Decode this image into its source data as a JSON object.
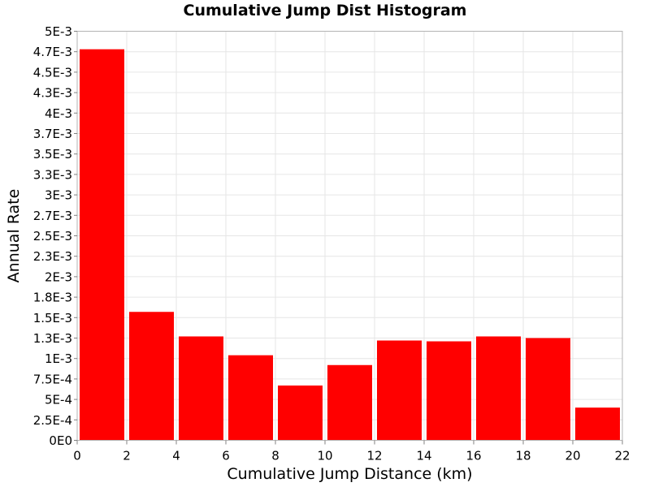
{
  "chart_data": {
    "type": "bar",
    "title": "Cumulative Jump Dist Histogram",
    "xlabel": "Cumulative Jump Distance (km)",
    "ylabel": "Annual Rate",
    "xlim": [
      0,
      22
    ],
    "ylim": [
      0,
      0.005
    ],
    "x_ticks": [
      {
        "value": 0,
        "label": "0"
      },
      {
        "value": 2,
        "label": "2"
      },
      {
        "value": 4,
        "label": "4"
      },
      {
        "value": 6,
        "label": "6"
      },
      {
        "value": 8,
        "label": "8"
      },
      {
        "value": 10,
        "label": "10"
      },
      {
        "value": 12,
        "label": "12"
      },
      {
        "value": 14,
        "label": "14"
      },
      {
        "value": 16,
        "label": "16"
      },
      {
        "value": 18,
        "label": "18"
      },
      {
        "value": 20,
        "label": "20"
      },
      {
        "value": 22,
        "label": "22"
      }
    ],
    "y_ticks": [
      {
        "value": 0,
        "label": "0E0"
      },
      {
        "value": 0.00025,
        "label": "2.5E-4"
      },
      {
        "value": 0.0005,
        "label": "5E-4"
      },
      {
        "value": 0.00075,
        "label": "7.5E-4"
      },
      {
        "value": 0.001,
        "label": "1E-3"
      },
      {
        "value": 0.00125,
        "label": "1.3E-3"
      },
      {
        "value": 0.0015,
        "label": "1.5E-3"
      },
      {
        "value": 0.00175,
        "label": "1.8E-3"
      },
      {
        "value": 0.002,
        "label": "2E-3"
      },
      {
        "value": 0.00225,
        "label": "2.3E-3"
      },
      {
        "value": 0.0025,
        "label": "2.5E-3"
      },
      {
        "value": 0.00275,
        "label": "2.7E-3"
      },
      {
        "value": 0.003,
        "label": "3E-3"
      },
      {
        "value": 0.00325,
        "label": "3.3E-3"
      },
      {
        "value": 0.0035,
        "label": "3.5E-3"
      },
      {
        "value": 0.00375,
        "label": "3.7E-3"
      },
      {
        "value": 0.004,
        "label": "4E-3"
      },
      {
        "value": 0.00425,
        "label": "4.3E-3"
      },
      {
        "value": 0.0045,
        "label": "4.5E-3"
      },
      {
        "value": 0.00475,
        "label": "4.7E-3"
      },
      {
        "value": 0.005,
        "label": "5E-3"
      }
    ],
    "bins": [
      {
        "x0": 0,
        "x1": 2,
        "value": 0.00478
      },
      {
        "x0": 2,
        "x1": 4,
        "value": 0.00157
      },
      {
        "x0": 4,
        "x1": 6,
        "value": 0.00127
      },
      {
        "x0": 6,
        "x1": 8,
        "value": 0.00104
      },
      {
        "x0": 8,
        "x1": 10,
        "value": 0.00067
      },
      {
        "x0": 10,
        "x1": 12,
        "value": 0.00092
      },
      {
        "x0": 12,
        "x1": 14,
        "value": 0.00122
      },
      {
        "x0": 14,
        "x1": 16,
        "value": 0.00121
      },
      {
        "x0": 16,
        "x1": 18,
        "value": 0.00127
      },
      {
        "x0": 18,
        "x1": 20,
        "value": 0.00125
      },
      {
        "x0": 20,
        "x1": 22,
        "value": 0.0004
      }
    ],
    "bar_color": "#ff0000",
    "grid": true,
    "grid_color": "#e6e6e6",
    "plot_border_color": "#b4b4b4",
    "legend": "none"
  }
}
